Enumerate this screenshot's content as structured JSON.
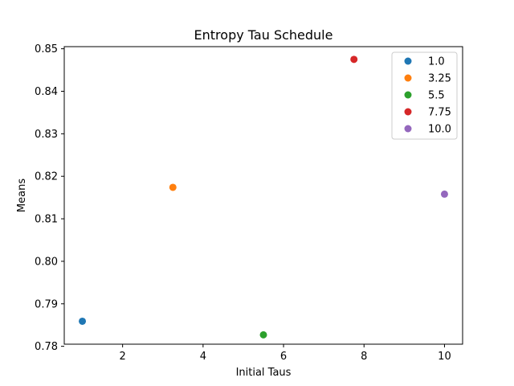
{
  "chart_data": {
    "type": "scatter",
    "title": "Entropy Tau Schedule",
    "xlabel": "Initial Taus",
    "ylabel": "Means",
    "xlim": [
      0.55,
      10.45
    ],
    "ylim": [
      0.7805,
      0.8505
    ],
    "xticks": [
      2,
      4,
      6,
      8,
      10
    ],
    "xtick_labels": [
      "2",
      "4",
      "6",
      "8",
      "10"
    ],
    "yticks": [
      0.78,
      0.79,
      0.8,
      0.81,
      0.82,
      0.83,
      0.84,
      0.85
    ],
    "ytick_labels": [
      "0.78",
      "0.79",
      "0.80",
      "0.81",
      "0.82",
      "0.83",
      "0.84",
      "0.85"
    ],
    "grid": false,
    "legend_position": "upper-right",
    "series": [
      {
        "name": "1.0",
        "color": "#1f77b4",
        "points": [
          {
            "x": 1.0,
            "y": 0.7859
          }
        ]
      },
      {
        "name": "3.25",
        "color": "#ff7f0e",
        "points": [
          {
            "x": 3.25,
            "y": 0.8174
          }
        ]
      },
      {
        "name": "5.5",
        "color": "#2ca02c",
        "points": [
          {
            "x": 5.5,
            "y": 0.7827
          }
        ]
      },
      {
        "name": "7.75",
        "color": "#d62728",
        "points": [
          {
            "x": 7.75,
            "y": 0.8475
          }
        ]
      },
      {
        "name": "10.0",
        "color": "#9467bd",
        "points": [
          {
            "x": 10.0,
            "y": 0.8158
          }
        ]
      }
    ]
  }
}
